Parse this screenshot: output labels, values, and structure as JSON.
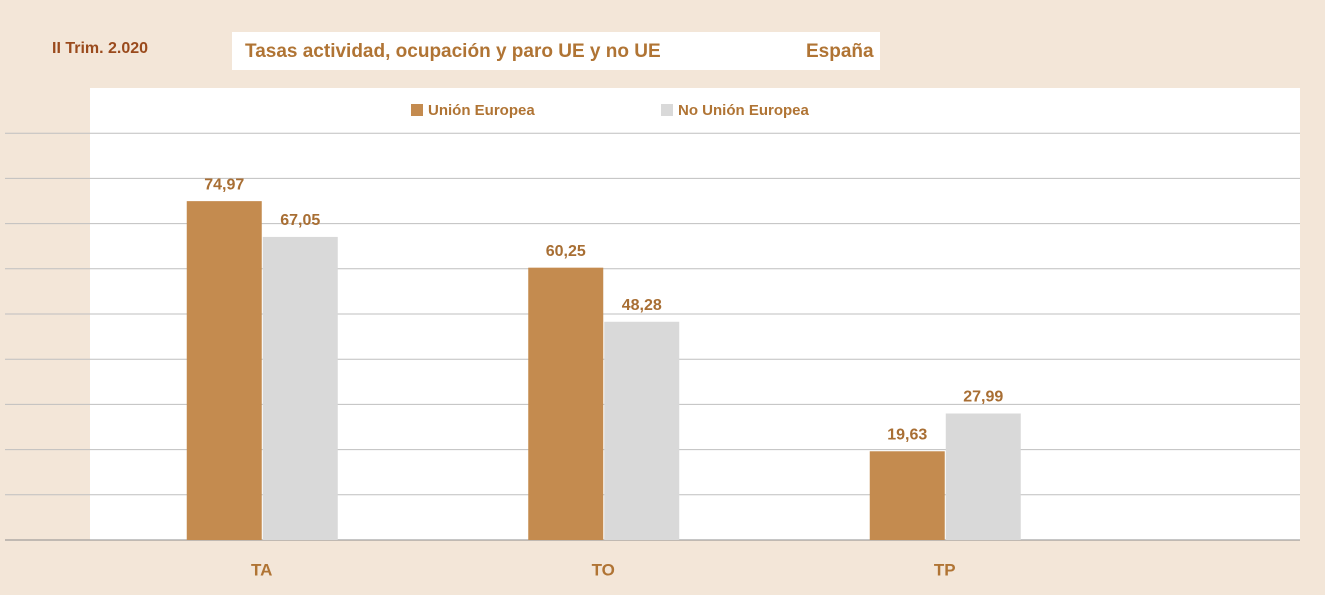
{
  "chart_data": {
    "type": "bar",
    "period": "II Trim. 2.020",
    "title": "Tasas actividad, ocupación y paro UE y no UE",
    "region": "España",
    "categories": [
      "TA",
      "TO",
      "TP"
    ],
    "series": [
      {
        "name": "Unión Europea",
        "color": "#c48b4f",
        "values": [
          74.97,
          60.25,
          19.63
        ],
        "value_labels": [
          "74,97",
          "60,25",
          "19,63"
        ]
      },
      {
        "name": "No Unión Europea",
        "color": "#d9d9d9",
        "values": [
          67.05,
          48.28,
          27.99
        ],
        "value_labels": [
          "67,05",
          "48,28",
          "27,99"
        ]
      }
    ],
    "ylim": [
      0,
      100
    ],
    "yticks": [
      0,
      10,
      20,
      30,
      40,
      50,
      60,
      70,
      80,
      90,
      100
    ],
    "grid": true,
    "legend": "top"
  }
}
